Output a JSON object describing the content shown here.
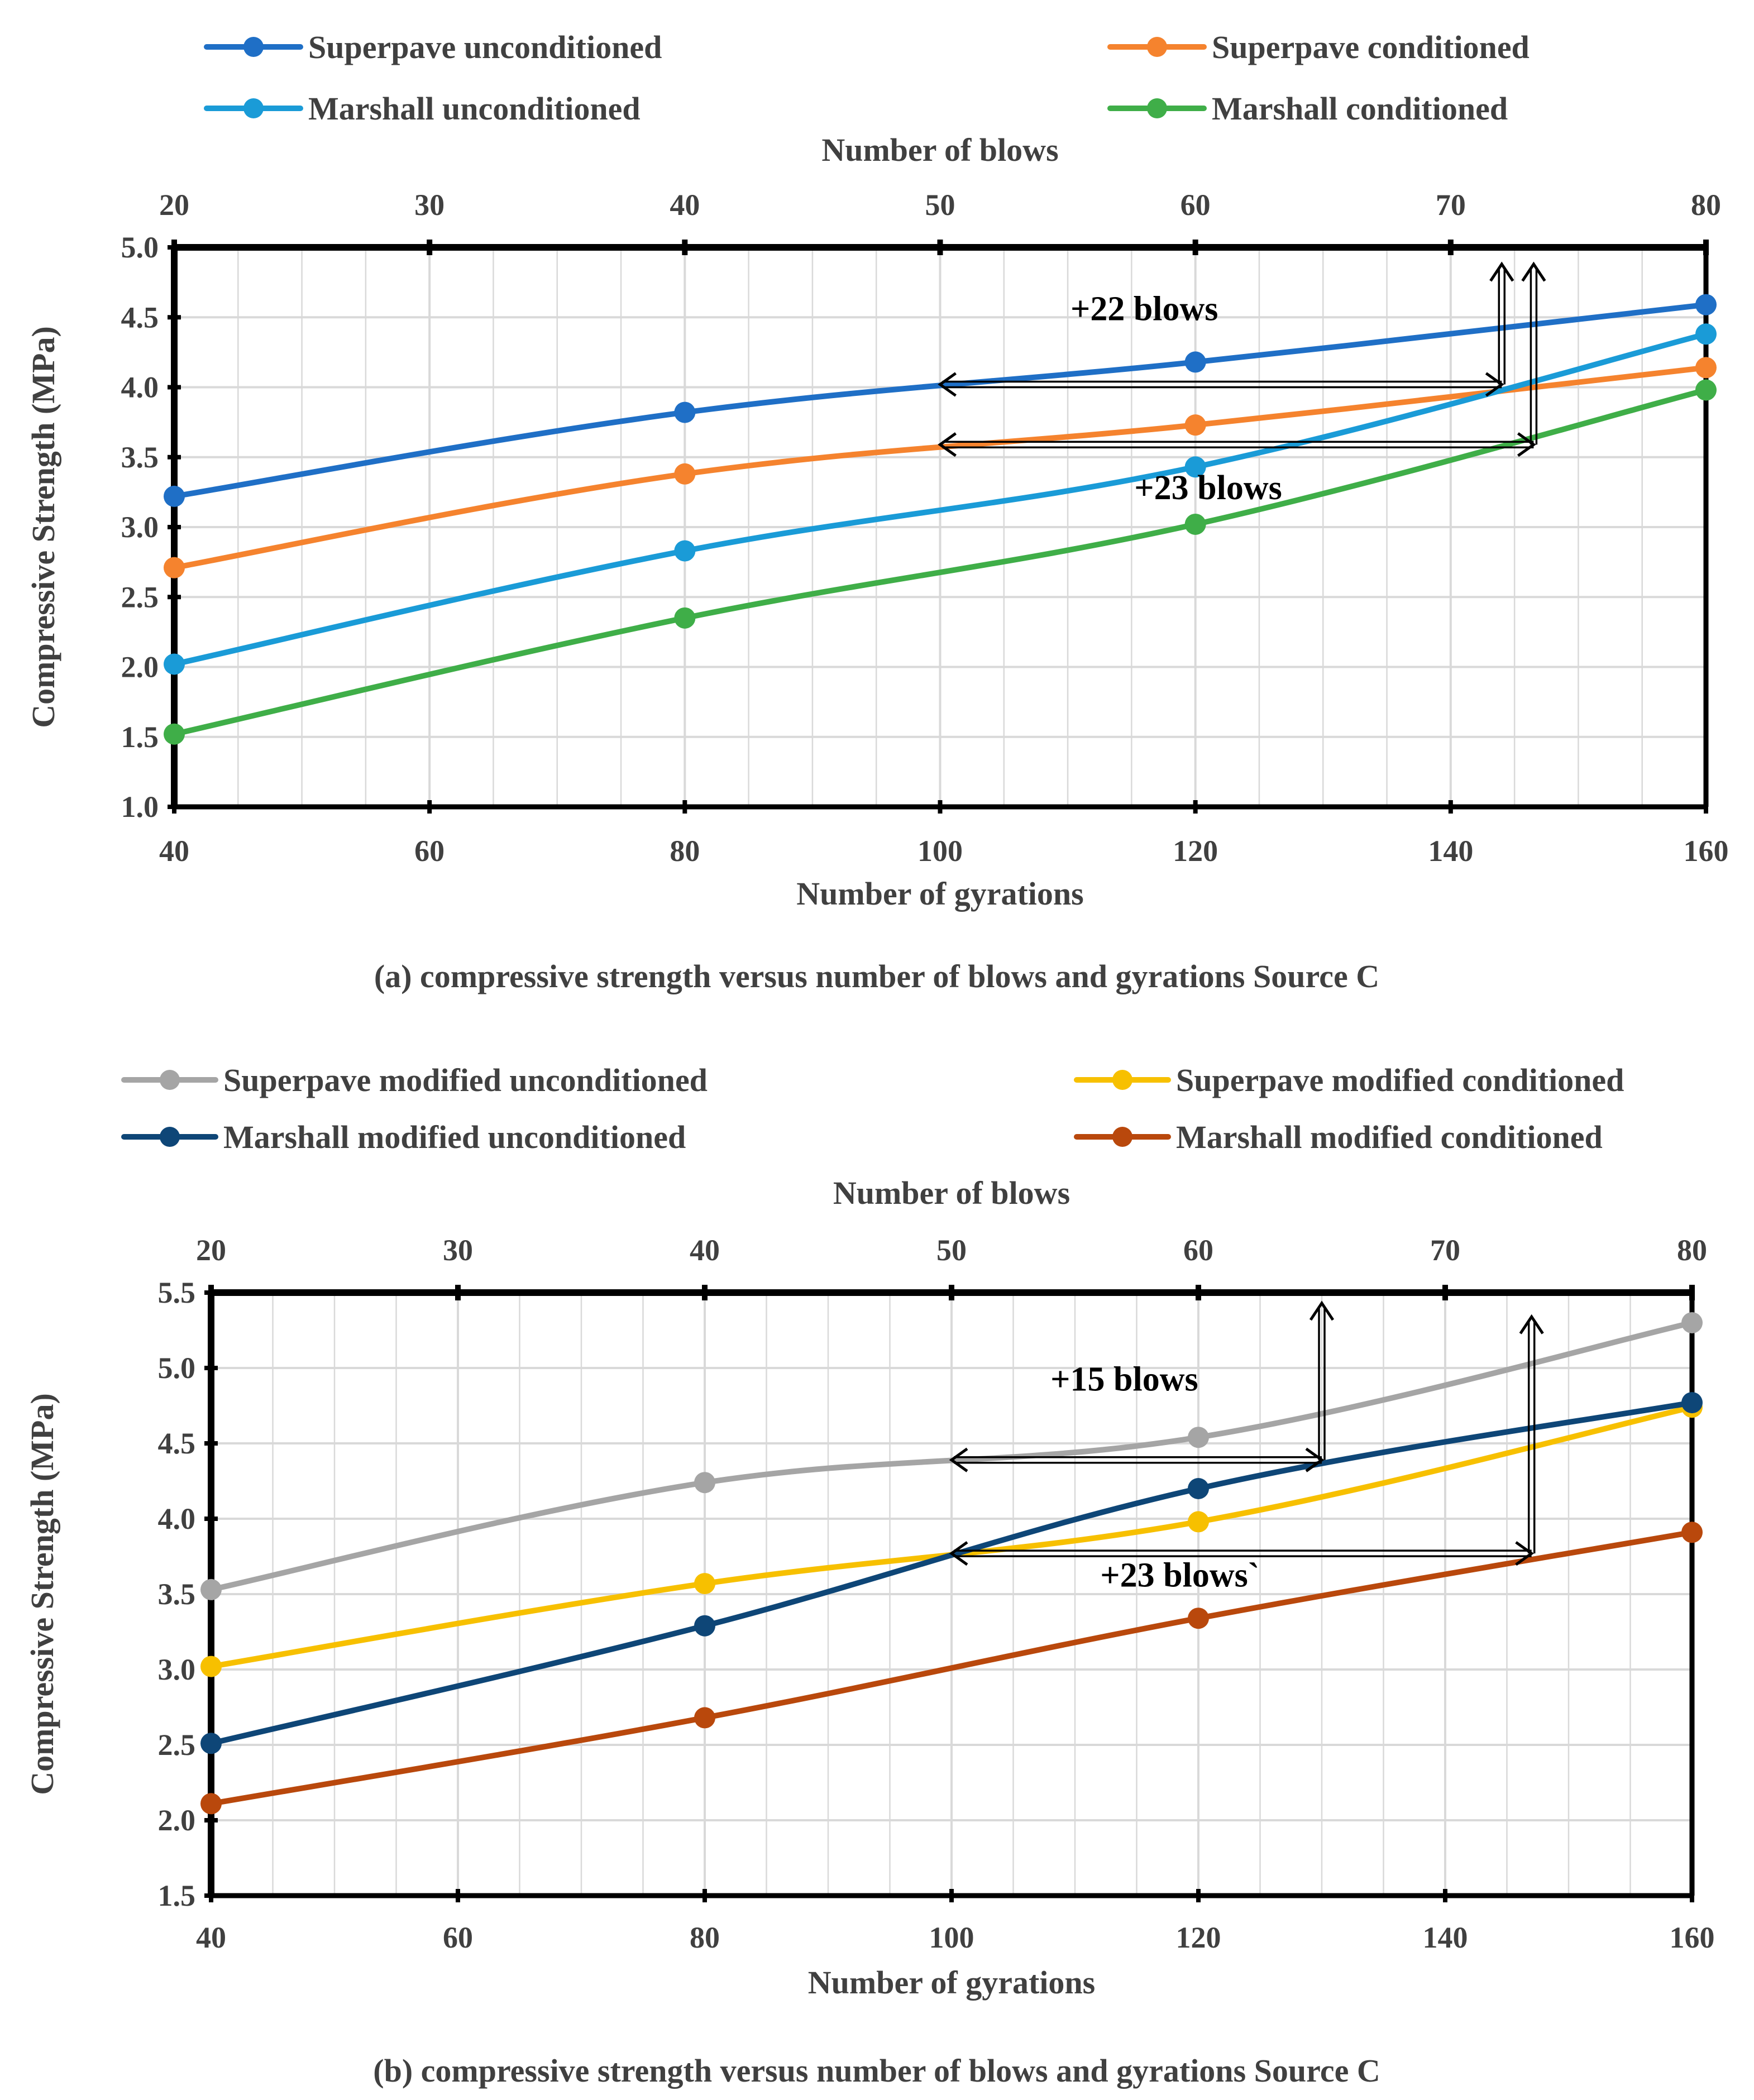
{
  "colors": {
    "superpave_unconditioned": "#1f6fc6",
    "superpave_conditioned": "#f5832e",
    "marshall_unconditioned": "#1a9bd7",
    "marshall_conditioned": "#3fae48",
    "superpave_modified_unconditioned": "#a5a5a5",
    "superpave_modified_conditioned": "#f7c000",
    "marshall_modified_unconditioned": "#0e4677",
    "marshall_modified_conditioned": "#b9480c",
    "axis": "#000000",
    "grid": "#d9d9d9",
    "text": "#404040"
  },
  "chart_data": [
    {
      "type": "line",
      "caption": "(a) compressive strength versus number of blows and gyrations Source C",
      "xlabel": "Number of gyrations",
      "x2label": "Number of blows",
      "ylabel": "Compressive Strength (MPa)",
      "xlim": [
        40,
        160
      ],
      "x2lim": [
        20,
        80
      ],
      "ylim": [
        1.0,
        5.0
      ],
      "xticks": [
        40,
        60,
        80,
        100,
        120,
        140,
        160
      ],
      "x2ticks": [
        20,
        30,
        40,
        50,
        60,
        70,
        80
      ],
      "yticks": [
        "1.0",
        "1.5",
        "2.0",
        "2.5",
        "3.0",
        "3.5",
        "4.0",
        "4.5",
        "5.0"
      ],
      "grid": true,
      "legend_position": "top",
      "x": [
        40,
        80,
        120,
        160
      ],
      "series": [
        {
          "name": "Superpave unconditioned",
          "color_key": "superpave_unconditioned",
          "values": [
            3.22,
            3.82,
            4.18,
            4.59
          ]
        },
        {
          "name": "Superpave conditioned",
          "color_key": "superpave_conditioned",
          "values": [
            2.71,
            3.38,
            3.73,
            4.14
          ]
        },
        {
          "name": "Marshall unconditioned",
          "color_key": "marshall_unconditioned",
          "values": [
            2.02,
            2.83,
            3.43,
            4.38
          ]
        },
        {
          "name": "Marshall conditioned",
          "color_key": "marshall_conditioned",
          "values": [
            1.52,
            2.35,
            3.02,
            3.98
          ]
        }
      ],
      "annotations": [
        {
          "text": "+22 blows",
          "x": 116,
          "y": 4.48
        },
        {
          "text": "+23 blows",
          "x": 121,
          "y": 3.2
        }
      ],
      "arrows": [
        {
          "from_x": 100,
          "to_x": 144,
          "y": 4.02,
          "up_to_y": 4.88
        },
        {
          "from_x": 100,
          "to_x": 146.5,
          "y": 3.59,
          "up_to_y": 4.88
        }
      ]
    },
    {
      "type": "line",
      "caption": "(b) compressive strength versus number of blows and gyrations Source C",
      "xlabel": "Number of gyrations",
      "x2label": "Number of blows",
      "ylabel": "Compressive Strength (MPa)",
      "xlim": [
        40,
        160
      ],
      "x2lim": [
        20,
        80
      ],
      "ylim": [
        1.5,
        5.5
      ],
      "xticks": [
        40,
        60,
        80,
        100,
        120,
        140,
        160
      ],
      "x2ticks": [
        20,
        30,
        40,
        50,
        60,
        70,
        80
      ],
      "yticks": [
        "1.5",
        "2.0",
        "2.5",
        "3.0",
        "3.5",
        "4.0",
        "4.5",
        "5.0",
        "5.5"
      ],
      "grid": true,
      "legend_position": "top",
      "x": [
        40,
        80,
        120,
        160
      ],
      "series": [
        {
          "name": "Superpave modified unconditioned",
          "color_key": "superpave_modified_unconditioned",
          "values": [
            3.53,
            4.24,
            4.54,
            5.3
          ]
        },
        {
          "name": "Superpave modified conditioned",
          "color_key": "superpave_modified_conditioned",
          "values": [
            3.02,
            3.57,
            3.98,
            4.74
          ]
        },
        {
          "name": "Marshall modified unconditioned",
          "color_key": "marshall_modified_unconditioned",
          "values": [
            2.51,
            3.29,
            4.2,
            4.77
          ]
        },
        {
          "name": "Marshall modified conditioned",
          "color_key": "marshall_modified_conditioned",
          "values": [
            2.11,
            2.68,
            3.34,
            3.91
          ]
        }
      ],
      "annotations": [
        {
          "text": "+15 blows",
          "x": 114,
          "y": 4.85
        },
        {
          "text": "+23 blows`",
          "x": 118.5,
          "y": 3.55
        }
      ],
      "arrows": [
        {
          "from_x": 100,
          "to_x": 130,
          "y": 4.39,
          "up_to_y": 5.43
        },
        {
          "from_x": 100,
          "to_x": 147,
          "y": 3.77,
          "up_to_y": 5.34
        }
      ]
    }
  ]
}
